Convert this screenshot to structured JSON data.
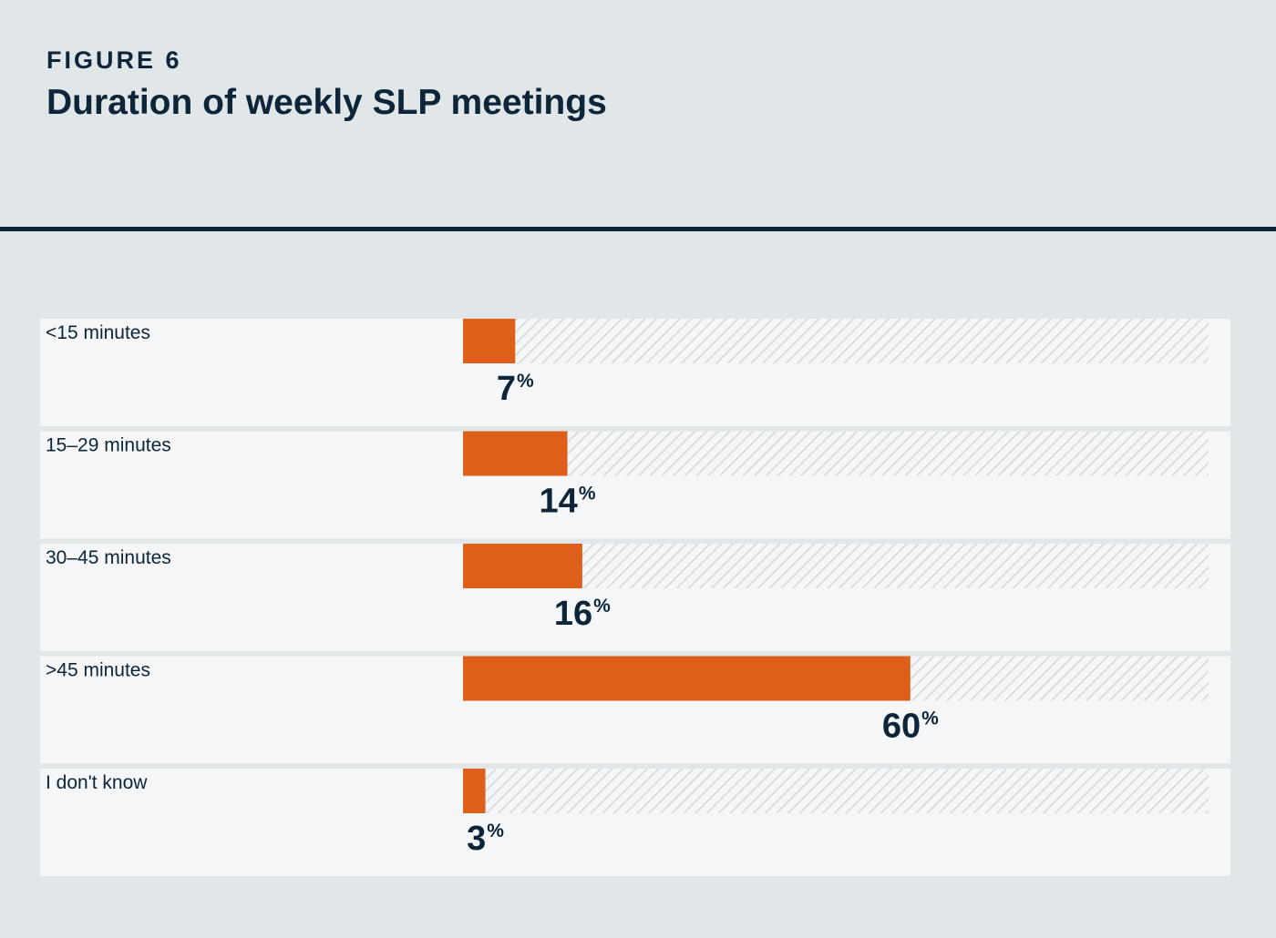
{
  "header": {
    "figure_label": "FIGURE 6",
    "title": "Duration of weekly SLP meetings"
  },
  "colors": {
    "background": "#e1e6e9",
    "panel": "#f4f6f8",
    "bar": "#dd5f19",
    "hatch": "#d6dbde",
    "text": "#0d2538"
  },
  "chart_data": {
    "type": "bar",
    "orientation": "horizontal",
    "title": "Duration of weekly SLP meetings",
    "categories": [
      "<15 minutes",
      "15–29 minutes",
      "30–45 minutes",
      ">45 minutes",
      "I don't know"
    ],
    "values": [
      7,
      14,
      16,
      60,
      3
    ],
    "value_suffix": "%",
    "xlim": [
      0,
      100
    ],
    "xlabel": "",
    "ylabel": "",
    "grid": false,
    "legend": "none"
  }
}
